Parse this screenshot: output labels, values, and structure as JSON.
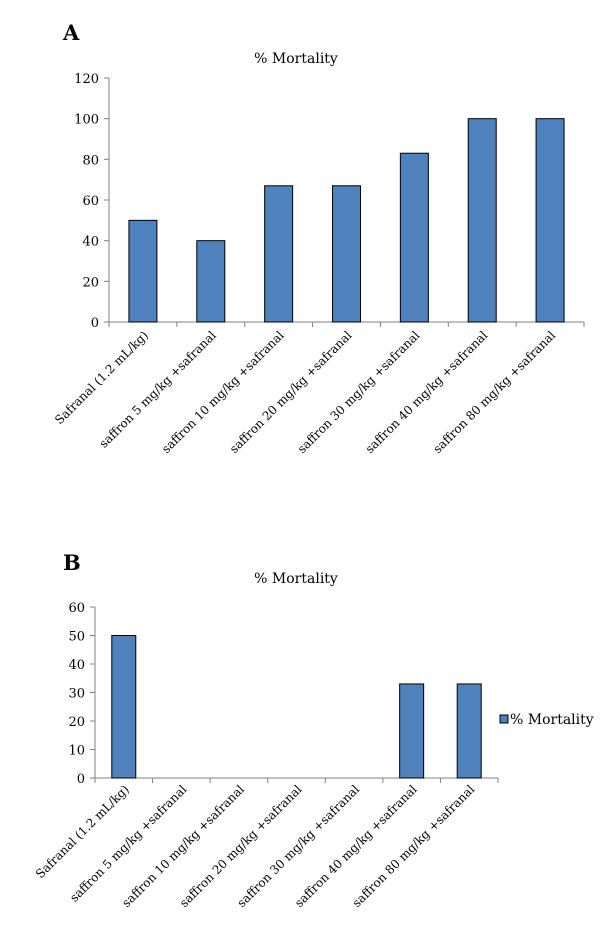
{
  "chart_data": [
    {
      "panel": "A",
      "type": "bar",
      "title": "% Mortality",
      "categories": [
        "Safranal (1.2 mL/kg)",
        "saffron 5 mg/kg +safranal",
        "saffron 10 mg/kg +safranal",
        "saffron 20 mg/kg +safranal",
        "saffron 30 mg/kg +safranal",
        "saffron 40 mg/kg +safranal",
        "saffron 80 mg/kg +safranal"
      ],
      "values": [
        50,
        40,
        67,
        67,
        83,
        100,
        100
      ],
      "ylim": [
        0,
        120
      ],
      "yticks": [
        "0",
        "20",
        "40",
        "60",
        "80",
        "100",
        "120"
      ],
      "color": "#4f81bd",
      "legend": "none",
      "grid": false
    },
    {
      "panel": "B",
      "type": "bar",
      "title": "% Mortality",
      "categories": [
        "Safranal (1.2 mL/kg)",
        "saffron 5 mg/kg +safranal",
        "saffron 10 mg/kg +safranal",
        "saffron 20 mg/kg +safranal",
        "saffron 30 mg/kg +safranal",
        "saffron 40 mg/kg +safranal",
        "saffron 80 mg/kg +safranal"
      ],
      "values": [
        50,
        0,
        0,
        0,
        0,
        33,
        33
      ],
      "ylim": [
        0,
        60
      ],
      "yticks": [
        "0",
        "10",
        "20",
        "30",
        "40",
        "50",
        "60"
      ],
      "color": "#4f81bd",
      "legend": "right",
      "legend_entries": [
        "% Mortality"
      ],
      "grid": false
    }
  ]
}
